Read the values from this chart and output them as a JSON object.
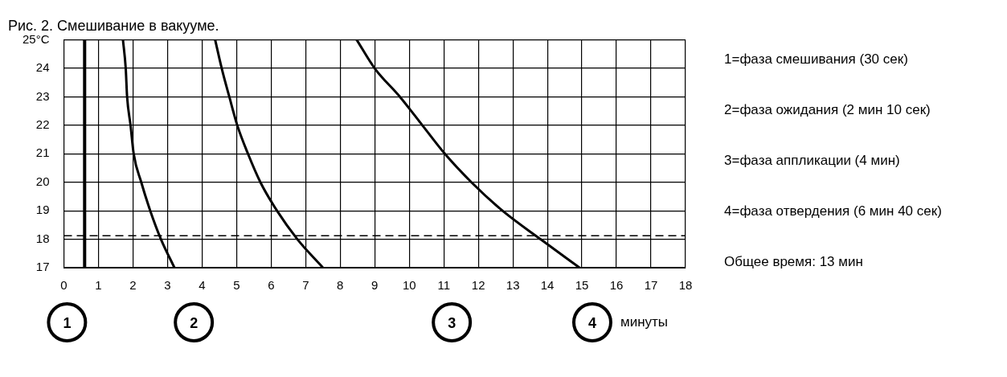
{
  "chart_data": {
    "type": "line",
    "title": "Рис. 2. Смешивание в вакууме.",
    "xlabel": "минуты",
    "xlim": [
      0,
      18
    ],
    "xticks": [
      0,
      1,
      2,
      3,
      4,
      5,
      6,
      7,
      8,
      9,
      10,
      11,
      12,
      13,
      14,
      15,
      16,
      17,
      18
    ],
    "ylim": [
      17,
      25
    ],
    "yticks": [
      17,
      18,
      19,
      20,
      21,
      22,
      23,
      24,
      {
        "value": 25,
        "label": "25°C"
      }
    ],
    "grid": true,
    "legend": false,
    "marker": "none",
    "line_style": "solid",
    "series": [
      {
        "color": "#000000",
        "x": [
          0.6,
          0.6
        ],
        "values": [
          25,
          17
        ]
      },
      {
        "color": "#000000",
        "x": [
          1.71,
          1.79,
          1.83,
          1.93,
          2.02,
          2.24,
          2.5,
          2.81,
          3.2
        ],
        "values": [
          25,
          24,
          23,
          22,
          21,
          20,
          19,
          18,
          17
        ]
      },
      {
        "color": "#000000",
        "x": [
          4.38,
          4.57,
          4.79,
          5.02,
          5.33,
          5.69,
          6.17,
          6.76,
          7.5
        ],
        "values": [
          25,
          24,
          23,
          22,
          21,
          20,
          19,
          18,
          17
        ]
      },
      {
        "color": "#000000",
        "x": [
          8.48,
          9.0,
          9.73,
          10.38,
          11.03,
          11.8,
          12.7,
          13.8,
          14.93
        ],
        "values": [
          25,
          24,
          23,
          22,
          21,
          20,
          19,
          18,
          17
        ]
      }
    ],
    "ref_lines": [
      {
        "axis": "y",
        "value": 18.12,
        "line_style": "dashed",
        "color": "#000000"
      }
    ],
    "annotations": [
      "1",
      "2",
      "3",
      "4",
      "1=фаза смешивания (30 сек)",
      "2=фаза ожидания (2 мин 10 сек)",
      "3=фаза аппликации (4 мин)",
      "4=фаза отвердения (6 мин 40 сек)",
      "Общее время: 13 мин"
    ]
  }
}
